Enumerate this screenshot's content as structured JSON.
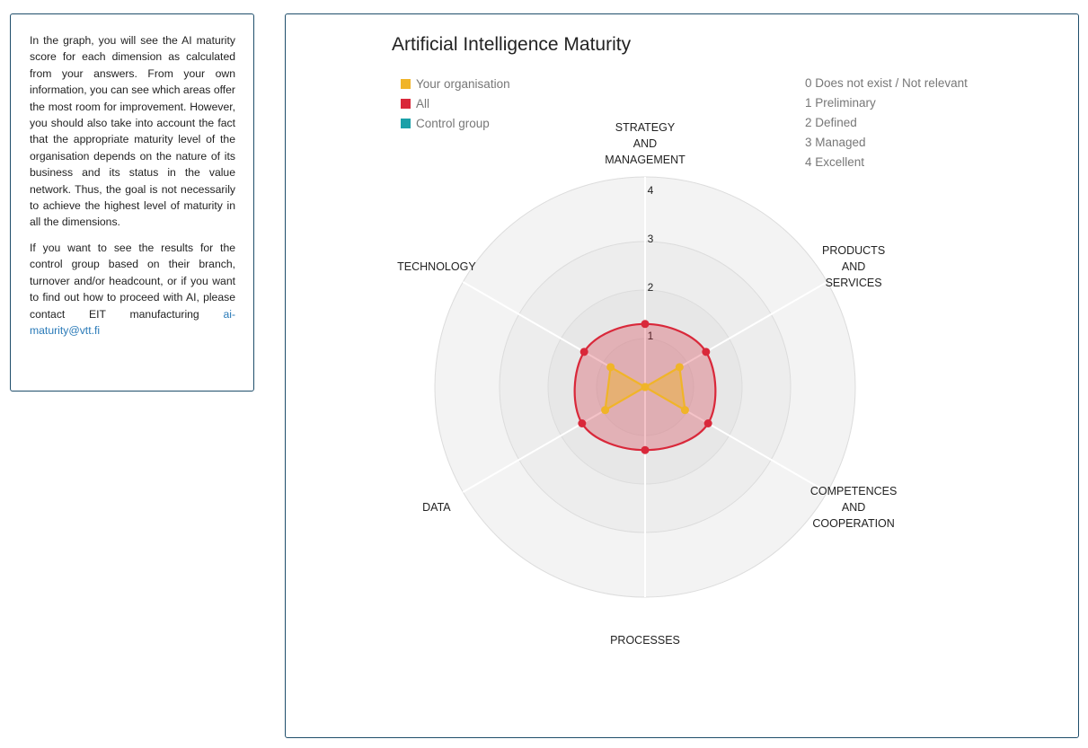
{
  "info": {
    "paragraph1": "In the graph, you will see the AI maturity score for each dimension as calculated from your answers. From your own information, you can see which areas offer the most room for improvement. However, you should also take into account the fact that the appropriate maturity level of the organisation depends on the nature of its business and its status in the value network. Thus, the goal is not necessarily to achieve the highest level of maturity in all the dimensions.",
    "paragraph2": "If you want to see the results for the control group based on their branch, turnover and/or headcount, or if you want to find out how to proceed with AI, please contact EIT manufacturing ",
    "email": "ai-maturity@vtt.fi"
  },
  "chart_data": {
    "type": "radar",
    "title": "Artificial Intelligence Maturity",
    "axes": [
      [
        "STRATEGY",
        "AND",
        "MANAGEMENT"
      ],
      [
        "PRODUCTS",
        "AND",
        "SERVICES"
      ],
      [
        "COMPETENCES",
        "AND",
        "COOPERATION"
      ],
      [
        "PROCESSES"
      ],
      [
        "DATA"
      ],
      [
        "TECHNOLOGY"
      ]
    ],
    "rmax": 4,
    "ticks": [
      "1",
      "2",
      "3",
      "4"
    ],
    "series": [
      {
        "name": "Your organisation",
        "color": "#f0b429",
        "values": [
          0.0,
          0.82,
          0.95,
          0.0,
          0.95,
          0.82
        ]
      },
      {
        "name": "All",
        "color": "#d9283a",
        "values": [
          1.3,
          1.45,
          1.5,
          1.3,
          1.5,
          1.45
        ]
      },
      {
        "name": "Control group",
        "color": "#1aa0a8",
        "values": []
      }
    ],
    "scale_legend": [
      "0 Does not exist / Not relevant",
      "1 Preliminary",
      "2 Defined",
      "3 Managed",
      "4 Excellent"
    ]
  }
}
